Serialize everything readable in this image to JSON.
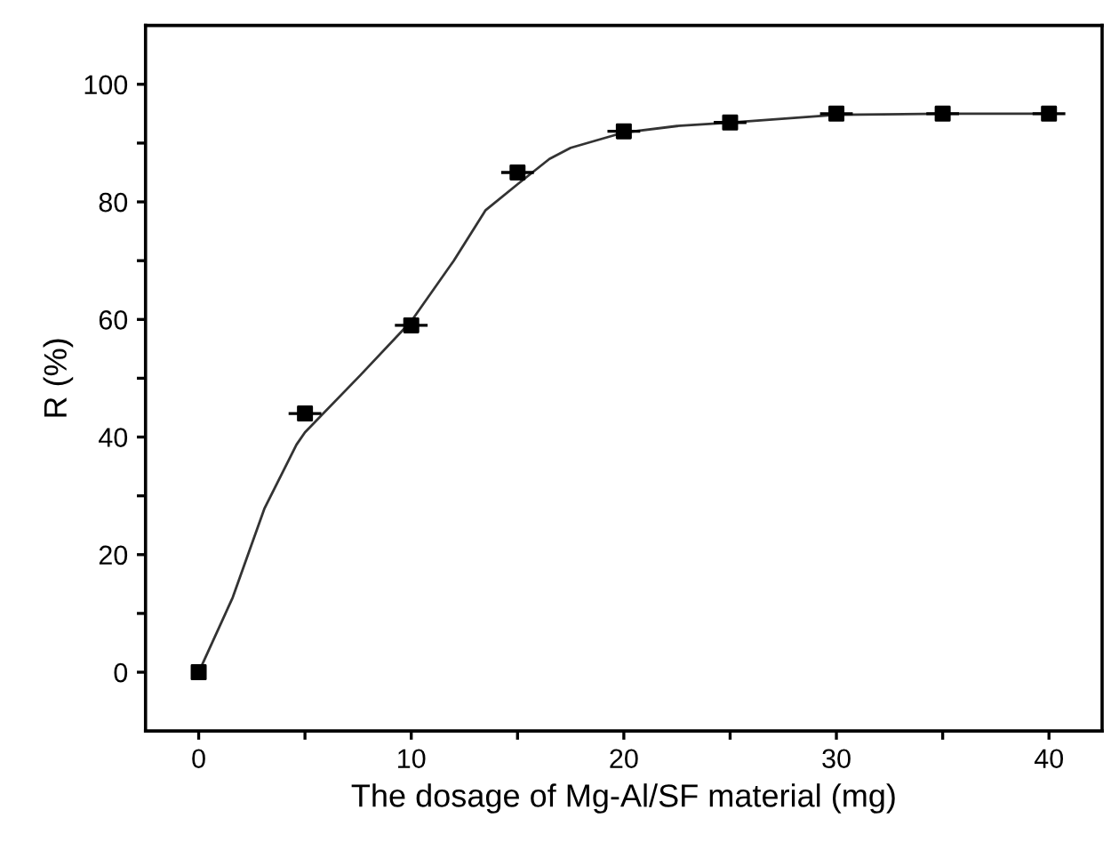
{
  "chart_data": {
    "type": "scatter",
    "xlabel": "The dosage of Mg-Al/SF material (mg)",
    "ylabel": "R (%)",
    "x": [
      0,
      5,
      10,
      15,
      20,
      25,
      30,
      35,
      40
    ],
    "series": [
      {
        "color": "#000000",
        "marker": "square",
        "values": [
          0,
          44,
          59,
          85,
          92,
          93.5,
          95,
          95,
          95
        ],
        "xerrors": [
          null,
          0.7,
          0.7,
          0.7,
          0.7,
          0.7,
          0.7,
          0.7,
          0.7
        ]
      },
      {
        "type": "line",
        "color": "#333333",
        "marker": "none",
        "line_style": "solid",
        "x": [
          0,
          1.6,
          3.1,
          4.6,
          5,
          7.6,
          10,
          12,
          13.5,
          15,
          16.5,
          17.5,
          20,
          22.5,
          25,
          30,
          35,
          40
        ],
        "values": [
          0,
          12.7,
          27.9,
          38.7,
          40.8,
          50.5,
          59.7,
          70,
          78.6,
          83,
          87.3,
          89.2,
          91.8,
          92.9,
          93.5,
          94.8,
          95,
          95
        ]
      }
    ],
    "xlim": [
      -2.5,
      42.5
    ],
    "ylim": [
      -10,
      110
    ],
    "xticks": [
      0,
      {
        "value": 5,
        "label": null
      },
      10,
      {
        "value": 15,
        "label": null
      },
      20,
      {
        "value": 25,
        "label": null
      },
      30,
      {
        "value": 35,
        "label": null
      },
      40
    ],
    "yticks": [
      0,
      {
        "value": 10,
        "label": null
      },
      20,
      {
        "value": 30,
        "label": null
      },
      40,
      {
        "value": 50,
        "label": null
      },
      60,
      {
        "value": 70,
        "label": null
      },
      80,
      {
        "value": 90,
        "label": null
      },
      100
    ],
    "grid": false
  }
}
